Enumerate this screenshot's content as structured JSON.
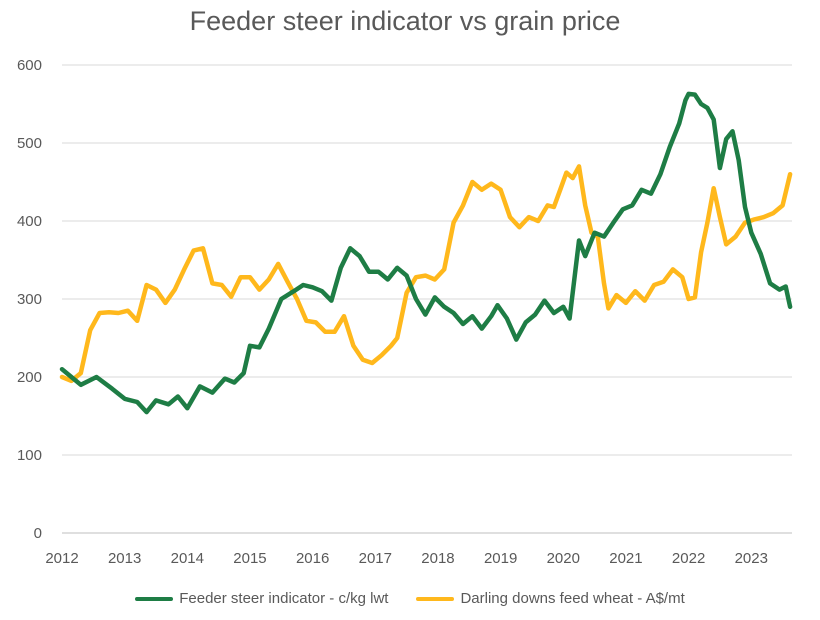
{
  "chart_data": {
    "type": "line",
    "title": "Feeder steer indicator vs grain price",
    "xlabel": "",
    "ylabel": "",
    "xlim": [
      2012,
      2023.65
    ],
    "ylim": [
      0,
      600
    ],
    "x_ticks": [
      "2012",
      "2013",
      "2014",
      "2015",
      "2016",
      "2017",
      "2018",
      "2019",
      "2020",
      "2021",
      "2022",
      "2023"
    ],
    "y_ticks": [
      "0",
      "100",
      "200",
      "300",
      "400",
      "500",
      "600"
    ],
    "grid": true,
    "legend": "bottom",
    "series": [
      {
        "name": "Feeder steer indicator - c/kg lwt",
        "color": "#1E7D45",
        "points": [
          [
            2012.0,
            210
          ],
          [
            2012.15,
            200
          ],
          [
            2012.3,
            190
          ],
          [
            2012.55,
            200
          ],
          [
            2012.8,
            185
          ],
          [
            2013.0,
            172
          ],
          [
            2013.2,
            168
          ],
          [
            2013.35,
            155
          ],
          [
            2013.5,
            170
          ],
          [
            2013.7,
            165
          ],
          [
            2013.85,
            175
          ],
          [
            2014.0,
            160
          ],
          [
            2014.2,
            188
          ],
          [
            2014.4,
            180
          ],
          [
            2014.6,
            198
          ],
          [
            2014.75,
            193
          ],
          [
            2014.9,
            205
          ],
          [
            2015.0,
            240
          ],
          [
            2015.15,
            238
          ],
          [
            2015.3,
            262
          ],
          [
            2015.5,
            300
          ],
          [
            2015.7,
            310
          ],
          [
            2015.85,
            318
          ],
          [
            2016.0,
            315
          ],
          [
            2016.15,
            310
          ],
          [
            2016.3,
            298
          ],
          [
            2016.45,
            340
          ],
          [
            2016.6,
            365
          ],
          [
            2016.75,
            355
          ],
          [
            2016.9,
            335
          ],
          [
            2017.05,
            335
          ],
          [
            2017.2,
            325
          ],
          [
            2017.35,
            340
          ],
          [
            2017.5,
            330
          ],
          [
            2017.65,
            300
          ],
          [
            2017.8,
            280
          ],
          [
            2017.95,
            302
          ],
          [
            2018.1,
            290
          ],
          [
            2018.25,
            282
          ],
          [
            2018.4,
            268
          ],
          [
            2018.55,
            278
          ],
          [
            2018.7,
            262
          ],
          [
            2018.85,
            278
          ],
          [
            2018.95,
            292
          ],
          [
            2019.1,
            275
          ],
          [
            2019.25,
            248
          ],
          [
            2019.4,
            270
          ],
          [
            2019.55,
            280
          ],
          [
            2019.7,
            298
          ],
          [
            2019.85,
            282
          ],
          [
            2020.0,
            290
          ],
          [
            2020.1,
            275
          ],
          [
            2020.25,
            375
          ],
          [
            2020.35,
            355
          ],
          [
            2020.5,
            385
          ],
          [
            2020.65,
            380
          ],
          [
            2020.8,
            398
          ],
          [
            2020.95,
            415
          ],
          [
            2021.1,
            420
          ],
          [
            2021.25,
            440
          ],
          [
            2021.4,
            435
          ],
          [
            2021.55,
            460
          ],
          [
            2021.7,
            495
          ],
          [
            2021.85,
            525
          ],
          [
            2021.95,
            555
          ],
          [
            2022.0,
            563
          ],
          [
            2022.1,
            562
          ],
          [
            2022.2,
            550
          ],
          [
            2022.3,
            545
          ],
          [
            2022.4,
            530
          ],
          [
            2022.5,
            468
          ],
          [
            2022.6,
            505
          ],
          [
            2022.7,
            515
          ],
          [
            2022.8,
            478
          ],
          [
            2022.9,
            418
          ],
          [
            2023.0,
            385
          ],
          [
            2023.15,
            358
          ],
          [
            2023.3,
            320
          ],
          [
            2023.45,
            312
          ],
          [
            2023.55,
            316
          ],
          [
            2023.62,
            290
          ]
        ]
      },
      {
        "name": "Darling downs feed wheat - A$/mt",
        "color": "#FFB81C",
        "points": [
          [
            2012.0,
            200
          ],
          [
            2012.15,
            195
          ],
          [
            2012.3,
            205
          ],
          [
            2012.45,
            260
          ],
          [
            2012.6,
            282
          ],
          [
            2012.75,
            283
          ],
          [
            2012.9,
            282
          ],
          [
            2013.05,
            285
          ],
          [
            2013.2,
            272
          ],
          [
            2013.35,
            318
          ],
          [
            2013.5,
            312
          ],
          [
            2013.65,
            295
          ],
          [
            2013.8,
            312
          ],
          [
            2013.95,
            338
          ],
          [
            2014.1,
            362
          ],
          [
            2014.25,
            365
          ],
          [
            2014.4,
            320
          ],
          [
            2014.55,
            318
          ],
          [
            2014.7,
            303
          ],
          [
            2014.85,
            328
          ],
          [
            2015.0,
            328
          ],
          [
            2015.15,
            312
          ],
          [
            2015.3,
            325
          ],
          [
            2015.45,
            345
          ],
          [
            2015.6,
            322
          ],
          [
            2015.75,
            300
          ],
          [
            2015.9,
            272
          ],
          [
            2016.05,
            270
          ],
          [
            2016.2,
            258
          ],
          [
            2016.35,
            258
          ],
          [
            2016.5,
            278
          ],
          [
            2016.65,
            240
          ],
          [
            2016.8,
            222
          ],
          [
            2016.95,
            218
          ],
          [
            2017.1,
            228
          ],
          [
            2017.25,
            240
          ],
          [
            2017.35,
            250
          ],
          [
            2017.5,
            308
          ],
          [
            2017.65,
            328
          ],
          [
            2017.8,
            330
          ],
          [
            2017.95,
            325
          ],
          [
            2018.1,
            338
          ],
          [
            2018.25,
            398
          ],
          [
            2018.4,
            420
          ],
          [
            2018.55,
            450
          ],
          [
            2018.7,
            440
          ],
          [
            2018.85,
            448
          ],
          [
            2019.0,
            440
          ],
          [
            2019.15,
            405
          ],
          [
            2019.3,
            392
          ],
          [
            2019.45,
            405
          ],
          [
            2019.6,
            400
          ],
          [
            2019.75,
            420
          ],
          [
            2019.85,
            418
          ],
          [
            2019.95,
            440
          ],
          [
            2020.05,
            462
          ],
          [
            2020.15,
            455
          ],
          [
            2020.25,
            470
          ],
          [
            2020.35,
            420
          ],
          [
            2020.45,
            385
          ],
          [
            2020.55,
            380
          ],
          [
            2020.65,
            320
          ],
          [
            2020.72,
            288
          ],
          [
            2020.85,
            305
          ],
          [
            2021.0,
            295
          ],
          [
            2021.15,
            310
          ],
          [
            2021.3,
            298
          ],
          [
            2021.45,
            318
          ],
          [
            2021.6,
            322
          ],
          [
            2021.75,
            338
          ],
          [
            2021.9,
            328
          ],
          [
            2022.0,
            300
          ],
          [
            2022.1,
            302
          ],
          [
            2022.2,
            360
          ],
          [
            2022.3,
            398
          ],
          [
            2022.4,
            442
          ],
          [
            2022.5,
            405
          ],
          [
            2022.6,
            370
          ],
          [
            2022.75,
            380
          ],
          [
            2022.9,
            398
          ],
          [
            2023.05,
            402
          ],
          [
            2023.2,
            405
          ],
          [
            2023.35,
            410
          ],
          [
            2023.5,
            420
          ],
          [
            2023.62,
            460
          ]
        ]
      }
    ]
  }
}
